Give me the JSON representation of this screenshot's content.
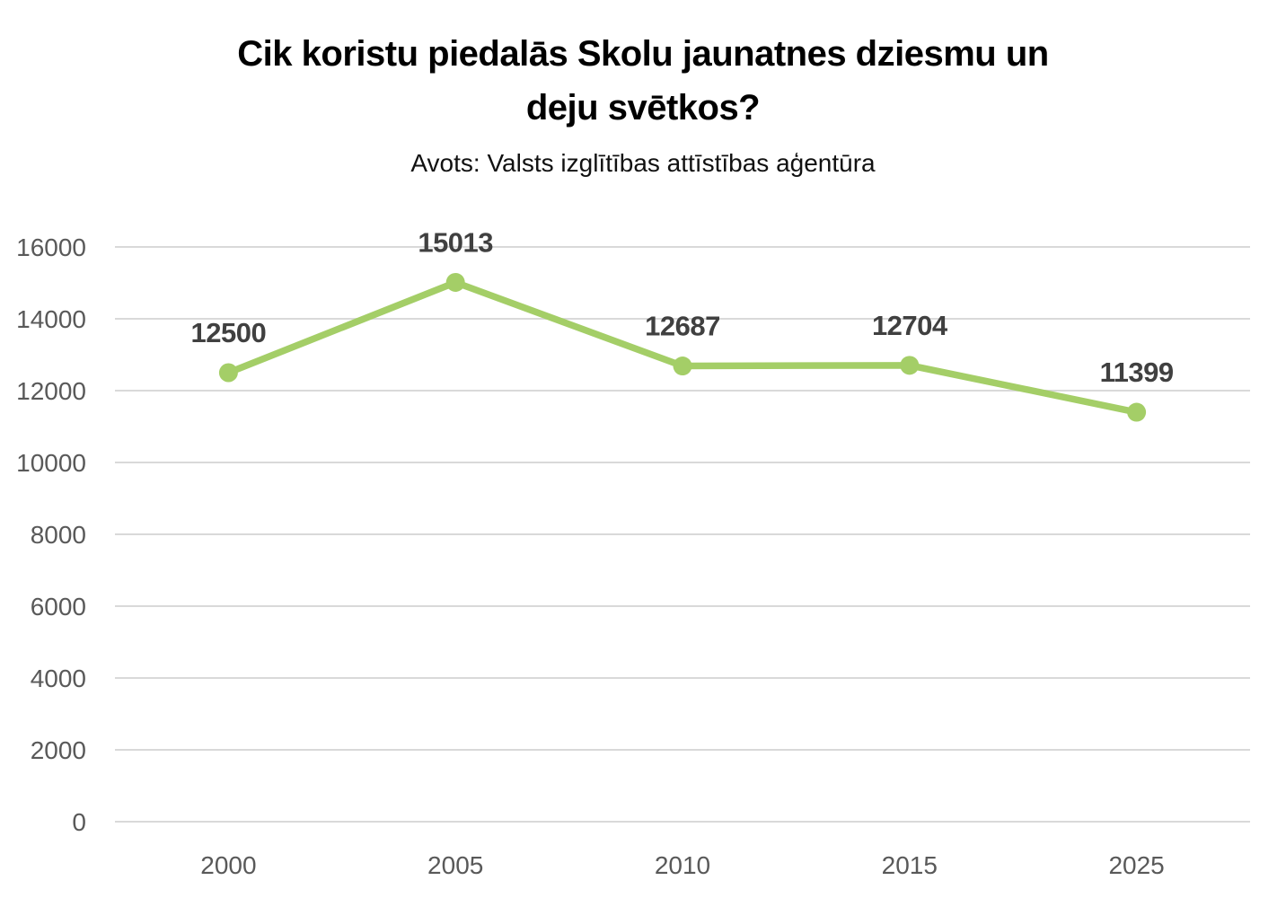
{
  "chart_data": {
    "type": "line",
    "title": "Cik koristu piedalās Skolu jaunatnes dziesmu un deju svētkos?",
    "title_lines": [
      "Cik koristu piedalās Skolu jaunatnes dziesmu un",
      "deju svētkos?"
    ],
    "subtitle": "Avots: Valsts izglītības attīstības aģentūra",
    "categories": [
      "2000",
      "2005",
      "2010",
      "2015",
      "2025"
    ],
    "values": [
      12500,
      15013,
      12687,
      12704,
      11399
    ],
    "data_labels_visible": true,
    "xlabel": "",
    "ylabel": "",
    "ylim": [
      0,
      16000
    ],
    "yticks": [
      0,
      2000,
      4000,
      6000,
      8000,
      10000,
      12000,
      14000,
      16000
    ],
    "grid": "horizontal",
    "legend": "none",
    "colors": {
      "line": "#A4CE67",
      "marker": "#A4CE67",
      "data_label": "#404040",
      "tick_label": "#595959",
      "gridline": "#D9D9D9",
      "title": "#000000",
      "background": "#FFFFFF"
    }
  }
}
